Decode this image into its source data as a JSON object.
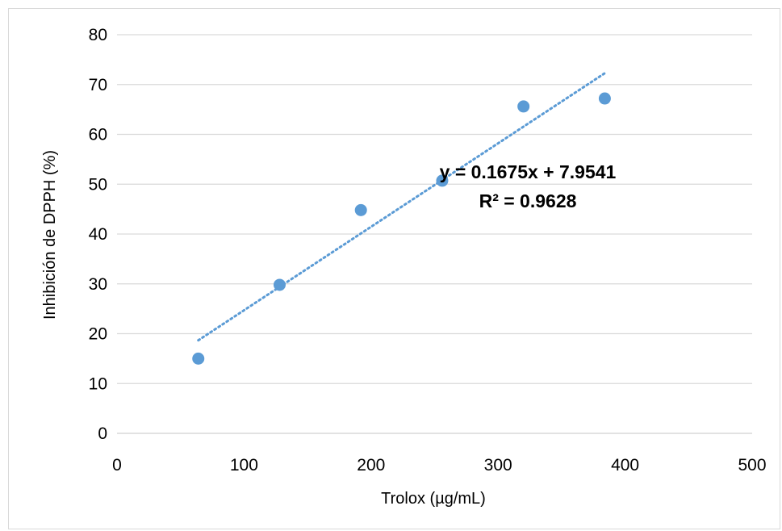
{
  "chart_data": {
    "type": "scatter",
    "xlabel": "Trolox (µg/mL)",
    "ylabel": "Inhibición de DPPH (%)",
    "xlim": [
      0,
      500
    ],
    "ylim": [
      0,
      80
    ],
    "xticks": [
      0,
      100,
      200,
      300,
      400,
      500
    ],
    "yticks": [
      0,
      10,
      20,
      30,
      40,
      50,
      60,
      70,
      80
    ],
    "xtick_labels": [
      "0",
      "100",
      "200",
      "300",
      "400",
      "500"
    ],
    "ytick_labels": [
      "0",
      "10",
      "20",
      "30",
      "40",
      "50",
      "60",
      "70",
      "80"
    ],
    "grid": "horizontal",
    "series": [
      {
        "x": [
          64,
          128,
          192,
          256,
          320,
          384
        ],
        "y": [
          15,
          29.8,
          44.8,
          50.7,
          65.6,
          67.2
        ],
        "color": "#5b9bd5"
      }
    ],
    "trendline": {
      "type": "linear",
      "slope": 0.1675,
      "intercept": 7.9541,
      "x_range": [
        64,
        384
      ],
      "color": "#5b9bd5",
      "style": "dotted",
      "equation_label": "y = 0.1675x + 7.9541",
      "r2_label": "R² = 0.9628"
    }
  }
}
